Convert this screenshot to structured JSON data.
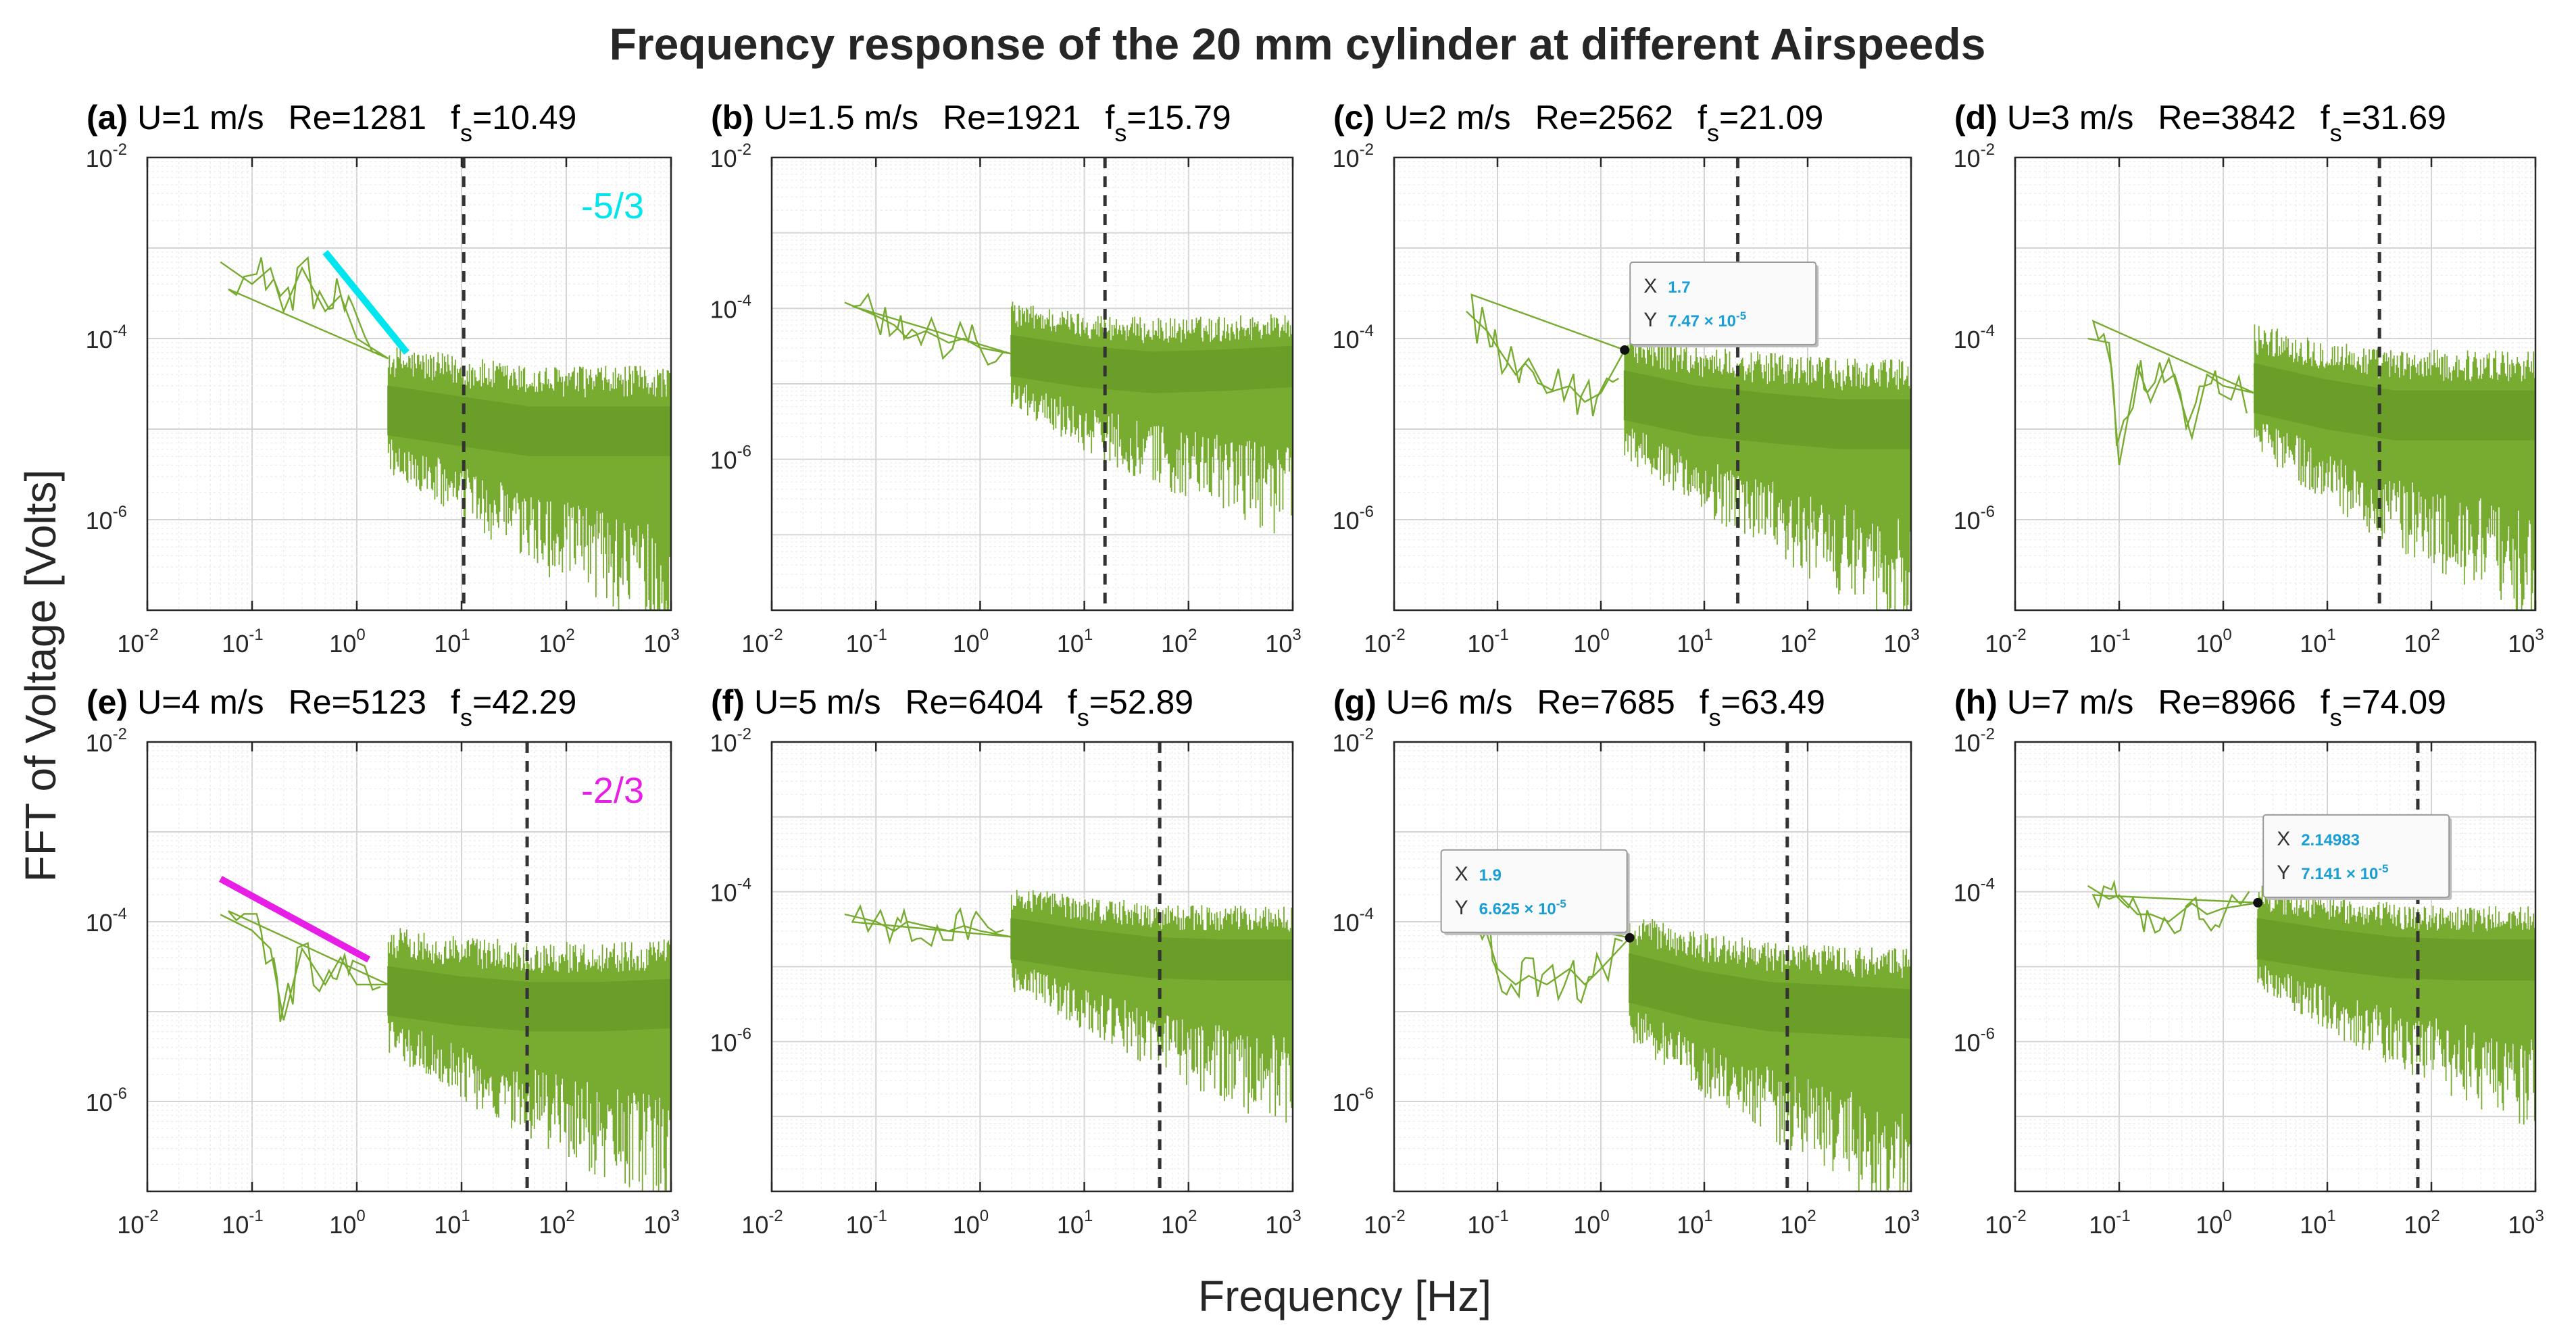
{
  "figure": {
    "title": "Frequency response of the 20 mm cylinder at different Airspeeds",
    "ylabel": "FFT of Voltage [Volts]",
    "xlabel": "Frequency [Hz]"
  },
  "colors": {
    "signal": "#77ac30",
    "vline": "#333333",
    "slope_cyan": "#00e5ee",
    "slope_magenta": "#e61ee6",
    "datatip": "#1a9ed6"
  },
  "chart_data": [
    {
      "id": "a",
      "type": "line",
      "scale": "loglog",
      "label": "(a)",
      "speed": "U=1 m/s",
      "re": "Re=1281",
      "fs_text": "=10.49",
      "fs": 10.49,
      "xlim": [
        0.01,
        1000
      ],
      "ylim": [
        1e-07,
        0.01
      ],
      "xticks": [
        "-2",
        "-1",
        "0",
        "1",
        "2",
        "3"
      ],
      "yticks": [
        "-2",
        "-4",
        "-6"
      ],
      "yticks_at": [
        -2,
        -4,
        -6
      ],
      "grid": true,
      "series": [
        {
          "name": "FFT",
          "noise_center": [
            1.7e-05,
            1.3e-05,
            1e-05,
            1e-05,
            1e-05
          ],
          "low_freq": [
            [
              0.05,
              0.0007
            ],
            [
              0.1,
              0.0004
            ],
            [
              0.15,
              0.0006
            ],
            [
              0.2,
              0.0002
            ],
            [
              0.3,
              0.0006
            ],
            [
              0.5,
              0.0002
            ],
            [
              0.7,
              0.0003
            ],
            [
              1.0,
              0.0001
            ],
            [
              2.0,
              6e-05
            ]
          ]
        }
      ],
      "slope_line": {
        "label": "-5/3",
        "color": "cyan",
        "x": [
          0.5,
          3
        ],
        "y": [
          0.0009,
          7e-05
        ]
      },
      "datatip": null
    },
    {
      "id": "b",
      "type": "line",
      "scale": "loglog",
      "label": "(b)",
      "speed": "U=1.5 m/s",
      "re": "Re=1921",
      "fs_text": "=15.79",
      "fs": 15.79,
      "xlim": [
        0.01,
        1000
      ],
      "ylim": [
        1e-08,
        0.01
      ],
      "xticks": [
        "-2",
        "-1",
        "0",
        "1",
        "2",
        "3"
      ],
      "yticks": [
        "-2",
        "-4",
        "-6"
      ],
      "yticks_at": [
        -2,
        -4,
        -6
      ],
      "grid": true,
      "series": [
        {
          "name": "FFT",
          "noise_center": [
            2.5e-05,
            1.8e-05,
            1.5e-05,
            1.6e-05,
            1.8e-05
          ],
          "low_freq": [
            [
              0.05,
              0.00012
            ],
            [
              0.1,
              8e-05
            ],
            [
              0.15,
              6e-05
            ],
            [
              0.2,
              4e-05
            ],
            [
              0.3,
              5e-05
            ],
            [
              0.5,
              3.5e-05
            ],
            [
              0.7,
              4e-05
            ],
            [
              1.0,
              3e-05
            ],
            [
              2.0,
              2.5e-05
            ]
          ]
        }
      ],
      "slope_line": null,
      "datatip": null
    },
    {
      "id": "c",
      "type": "line",
      "scale": "loglog",
      "label": "(c)",
      "speed": "U=2 m/s",
      "re": "Re=2562",
      "fs_text": "=21.09",
      "fs": 21.09,
      "xlim": [
        0.01,
        1000
      ],
      "ylim": [
        1e-07,
        0.01
      ],
      "xticks": [
        "-2",
        "-1",
        "0",
        "1",
        "2",
        "3"
      ],
      "yticks": [
        "-2",
        "-4",
        "-6"
      ],
      "yticks_at": [
        -2,
        -4,
        -6
      ],
      "grid": true,
      "series": [
        {
          "name": "FFT",
          "noise_center": [
            2.5e-05,
            1.7e-05,
            1.4e-05,
            1.2e-05,
            1.2e-05
          ],
          "low_freq": [
            [
              0.05,
              0.0002
            ],
            [
              0.08,
              0.00012
            ],
            [
              0.1,
              8e-05
            ],
            [
              0.15,
              4e-05
            ],
            [
              0.2,
              6e-05
            ],
            [
              0.3,
              2.5e-05
            ],
            [
              0.5,
              3e-05
            ],
            [
              0.7,
              2e-05
            ],
            [
              1.0,
              2.5e-05
            ],
            [
              1.7,
              7.47e-05
            ]
          ]
        }
      ],
      "slope_line": null,
      "datatip": {
        "x_text": "1.7",
        "y_text": "7.47 × 10",
        "y_exp": "-5",
        "x": 1.7,
        "y": 7.47e-05,
        "side": "right"
      }
    },
    {
      "id": "d",
      "type": "line",
      "scale": "loglog",
      "label": "(d)",
      "speed": "U=3 m/s",
      "re": "Re=3842",
      "fs_text": "=31.69",
      "fs": 31.69,
      "xlim": [
        0.01,
        1000
      ],
      "ylim": [
        1e-07,
        0.01
      ],
      "xticks": [
        "-2",
        "-1",
        "0",
        "1",
        "2",
        "3"
      ],
      "yticks": [
        "-2",
        "-4",
        "-6"
      ],
      "yticks_at": [
        -2,
        -4,
        -6
      ],
      "grid": true,
      "series": [
        {
          "name": "FFT",
          "noise_center": [
            3e-05,
            2e-05,
            1.5e-05,
            1.5e-05,
            1.5e-05
          ],
          "low_freq": [
            [
              0.05,
              0.0001
            ],
            [
              0.08,
              9e-05
            ],
            [
              0.1,
              4e-06
            ],
            [
              0.15,
              5e-05
            ],
            [
              0.2,
              2e-05
            ],
            [
              0.3,
              6e-05
            ],
            [
              0.5,
              8e-06
            ],
            [
              0.7,
              4e-05
            ],
            [
              1.0,
              3e-05
            ],
            [
              2.0,
              2.5e-05
            ]
          ]
        }
      ],
      "slope_line": null,
      "datatip": null
    },
    {
      "id": "e",
      "type": "line",
      "scale": "loglog",
      "label": "(e)",
      "speed": "U=4 m/s",
      "re": "Re=5123",
      "fs_text": "=42.29",
      "fs": 42.29,
      "xlim": [
        0.01,
        1000
      ],
      "ylim": [
        1e-07,
        0.01
      ],
      "xticks": [
        "-2",
        "-1",
        "0",
        "1",
        "2",
        "3"
      ],
      "yticks": [
        "-2",
        "-4",
        "-6"
      ],
      "yticks_at": [
        -2,
        -4,
        -6
      ],
      "grid": true,
      "series": [
        {
          "name": "FFT",
          "noise_center": [
            1.8e-05,
            1.4e-05,
            1.2e-05,
            1.2e-05,
            1.3e-05
          ],
          "low_freq": [
            [
              0.05,
              0.00012
            ],
            [
              0.1,
              8e-05
            ],
            [
              0.15,
              5e-05
            ],
            [
              0.2,
              8e-06
            ],
            [
              0.3,
              5e-05
            ],
            [
              0.5,
              2e-05
            ],
            [
              0.7,
              4e-05
            ],
            [
              1.0,
              2e-05
            ],
            [
              2.0,
              2e-05
            ]
          ]
        }
      ],
      "slope_line": {
        "label": "-2/3",
        "color": "magenta",
        "x": [
          0.05,
          1.3
        ],
        "y": [
          0.0003,
          3.8e-05
        ]
      },
      "datatip": null
    },
    {
      "id": "f",
      "type": "line",
      "scale": "loglog",
      "label": "(f)",
      "speed": "U=5 m/s",
      "re": "Re=6404",
      "fs_text": "=52.89",
      "fs": 52.89,
      "xlim": [
        0.01,
        1000
      ],
      "ylim": [
        1e-08,
        0.01
      ],
      "xticks": [
        "-2",
        "-1",
        "0",
        "1",
        "2",
        "3"
      ],
      "yticks": [
        "-2",
        "-4",
        "-6"
      ],
      "yticks_at": [
        -2,
        -4,
        -6
      ],
      "grid": true,
      "series": [
        {
          "name": "FFT",
          "noise_center": [
            2.5e-05,
            1.8e-05,
            1.4e-05,
            1.3e-05,
            1.3e-05
          ],
          "low_freq": [
            [
              0.05,
              5e-05
            ],
            [
              0.1,
              4e-05
            ],
            [
              0.15,
              3e-05
            ],
            [
              0.2,
              4e-05
            ],
            [
              0.3,
              3.5e-05
            ],
            [
              0.5,
              3e-05
            ],
            [
              0.7,
              3.5e-05
            ],
            [
              1.0,
              3e-05
            ],
            [
              2.0,
              2.5e-05
            ]
          ]
        }
      ],
      "slope_line": null,
      "datatip": null
    },
    {
      "id": "g",
      "type": "line",
      "scale": "loglog",
      "label": "(g)",
      "speed": "U=6 m/s",
      "re": "Re=7685",
      "fs_text": "=63.49",
      "fs": 63.49,
      "xlim": [
        0.01,
        1000
      ],
      "ylim": [
        1e-07,
        0.01
      ],
      "xticks": [
        "-2",
        "-1",
        "0",
        "1",
        "2",
        "3"
      ],
      "yticks": [
        "-2",
        "-4",
        "-6"
      ],
      "yticks_at": [
        -2,
        -4,
        -6
      ],
      "grid": true,
      "series": [
        {
          "name": "FFT",
          "noise_center": [
            2.5e-05,
            1.6e-05,
            1.2e-05,
            1.1e-05,
            1e-05
          ],
          "low_freq": [
            [
              0.05,
              0.00015
            ],
            [
              0.08,
              7e-05
            ],
            [
              0.1,
              3e-05
            ],
            [
              0.15,
              2e-05
            ],
            [
              0.2,
              2.5e-05
            ],
            [
              0.3,
              2e-05
            ],
            [
              0.5,
              3e-05
            ],
            [
              0.7,
              2e-05
            ],
            [
              1.0,
              3e-05
            ],
            [
              1.9,
              6.625e-05
            ]
          ]
        }
      ],
      "slope_line": null,
      "datatip": {
        "x_text": "1.9",
        "y_text": "6.625 × 10",
        "y_exp": "-5",
        "x": 1.9,
        "y": 6.625e-05,
        "side": "left"
      }
    },
    {
      "id": "h",
      "type": "line",
      "scale": "loglog",
      "label": "(h)",
      "speed": "U=7 m/s",
      "re": "Re=8966",
      "fs_text": "=74.09",
      "fs": 74.09,
      "xlim": [
        0.01,
        1000
      ],
      "ylim": [
        1e-08,
        0.01
      ],
      "xticks": [
        "-2",
        "-1",
        "0",
        "1",
        "2",
        "3"
      ],
      "yticks": [
        "-2",
        "-4",
        "-6"
      ],
      "yticks_at": [
        -2,
        -4,
        -6
      ],
      "grid": true,
      "series": [
        {
          "name": "FFT",
          "noise_center": [
            2.5e-05,
            1.8e-05,
            1.4e-05,
            1.3e-05,
            1.3e-05
          ],
          "low_freq": [
            [
              0.05,
              0.00012
            ],
            [
              0.08,
              8e-05
            ],
            [
              0.1,
              9e-05
            ],
            [
              0.15,
              5e-05
            ],
            [
              0.2,
              5e-05
            ],
            [
              0.3,
              4e-05
            ],
            [
              0.5,
              7e-05
            ],
            [
              0.7,
              5e-05
            ],
            [
              1.0,
              6e-05
            ],
            [
              2.14983,
              7.141e-05
            ]
          ]
        }
      ],
      "slope_line": null,
      "datatip": {
        "x_text": "2.14983",
        "y_text": "7.141 × 10",
        "y_exp": "-5",
        "x": 2.14983,
        "y": 7.141e-05,
        "side": "right"
      }
    }
  ]
}
